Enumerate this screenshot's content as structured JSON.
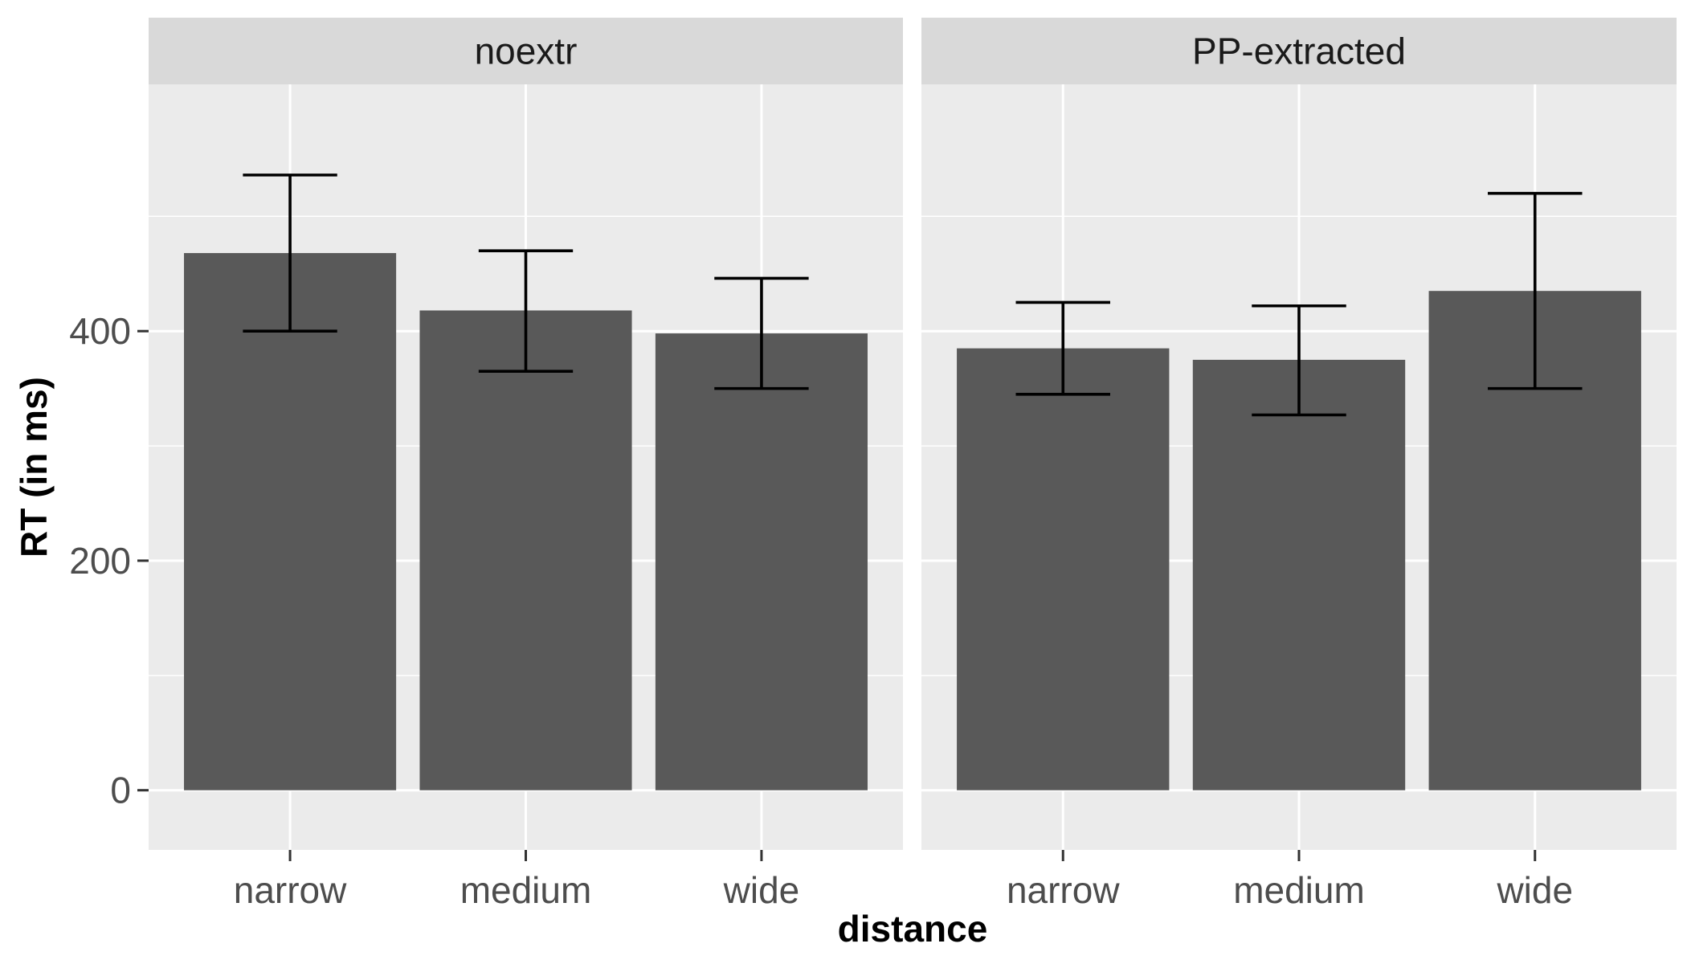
{
  "chart_data": {
    "type": "bar",
    "xlabel": "distance",
    "ylabel": "RT (in ms)",
    "ylim": [
      -52,
      615
    ],
    "y_ticks": [
      0,
      200,
      400
    ],
    "grid": true,
    "categories": [
      "narrow",
      "medium",
      "wide"
    ],
    "facets": [
      {
        "label": "noextr",
        "values": [
          468,
          418,
          398
        ],
        "err_low": [
          400,
          365,
          350
        ],
        "err_high": [
          536,
          470,
          446
        ]
      },
      {
        "label": "PP-extracted",
        "values": [
          385,
          375,
          435
        ],
        "err_low": [
          345,
          327,
          350
        ],
        "err_high": [
          425,
          422,
          520
        ]
      }
    ],
    "colors": {
      "bar": "#595959",
      "panel": "#ebebeb",
      "strip": "#d9d9d9"
    }
  }
}
